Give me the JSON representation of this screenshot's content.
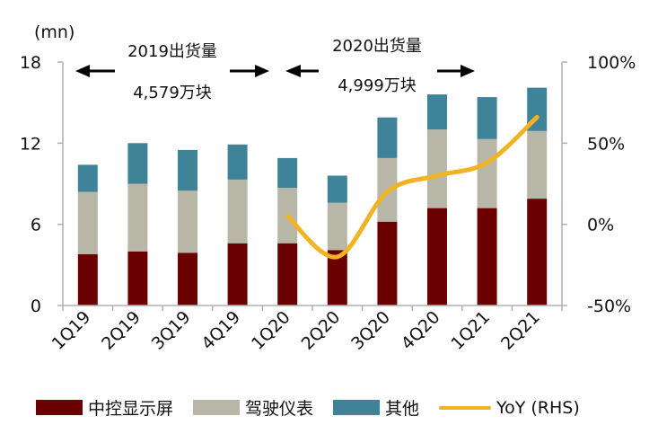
{
  "chart_data": {
    "type": "bar",
    "stacked": true,
    "unit_label": "(mn)",
    "categories": [
      "1Q19",
      "2Q19",
      "3Q19",
      "4Q19",
      "1Q20",
      "2Q20",
      "3Q20",
      "4Q20",
      "1Q21",
      "2Q21"
    ],
    "series": [
      {
        "name": "中控显示屏",
        "color": "#6b0000",
        "values": [
          3.8,
          4.0,
          3.9,
          4.6,
          4.6,
          4.1,
          6.2,
          7.2,
          7.2,
          7.9
        ]
      },
      {
        "name": "驾驶仪表",
        "color": "#b8b6a6",
        "values": [
          4.6,
          5.0,
          4.6,
          4.7,
          4.1,
          3.5,
          4.7,
          5.8,
          5.1,
          5.0
        ]
      },
      {
        "name": "其他",
        "color": "#3f8398",
        "values": [
          2.0,
          3.0,
          3.0,
          2.6,
          2.2,
          2.0,
          3.0,
          2.6,
          3.1,
          3.2
        ]
      }
    ],
    "line_series": {
      "name": "YoY (RHS)",
      "color": "#f0b323",
      "categories": [
        "1Q20",
        "2Q20",
        "3Q20",
        "4Q20",
        "1Q21",
        "2Q21"
      ],
      "values": [
        5,
        -20,
        20,
        30,
        38,
        66
      ]
    },
    "y_left": {
      "ticks": [
        "0",
        "6",
        "12",
        "18"
      ],
      "range": [
        0,
        18
      ]
    },
    "y_right": {
      "ticks": [
        "-50%",
        "0%",
        "50%",
        "100%"
      ],
      "range": [
        -50,
        100
      ]
    },
    "annotations": [
      {
        "title": "2019出货量",
        "value": "4,579万块"
      },
      {
        "title": "2020出货量",
        "value": "4,999万块"
      }
    ]
  }
}
